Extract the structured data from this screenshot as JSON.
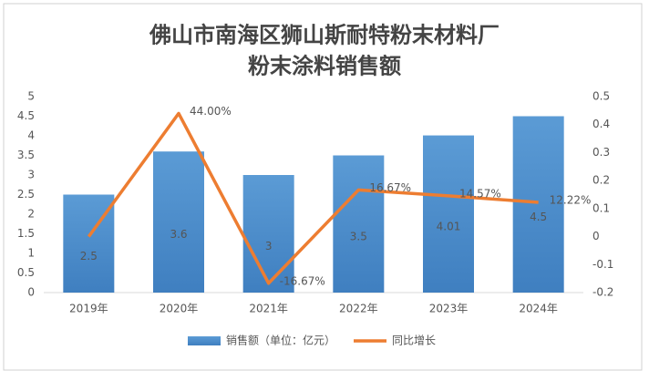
{
  "chart_data": {
    "type": "bar_line",
    "title": "佛山市南海区狮山斯耐特粉末材料厂",
    "subtitle": "粉末涂料销售额",
    "categories": [
      "2019年",
      "2020年",
      "2021年",
      "2022年",
      "2023年",
      "2024年"
    ],
    "series": [
      {
        "name": "销售额（单位：亿元）",
        "type": "bar",
        "color": "#5b9bd5",
        "values": [
          2.5,
          3.6,
          3,
          3.5,
          4.01,
          4.5
        ]
      },
      {
        "name": "同比增长",
        "type": "line",
        "axis": "y2",
        "color": "#ed7d31",
        "values": [
          0,
          0.44,
          -0.1667,
          0.1667,
          0.1457,
          0.1222
        ],
        "value_labels": [
          null,
          "44.00%",
          "-16.67%",
          "16.67%",
          "14.57%",
          "12.22%"
        ]
      }
    ],
    "ylim": [
      0,
      5
    ],
    "yticks": [
      0,
      0.5,
      1,
      1.5,
      2,
      2.5,
      3,
      3.5,
      4,
      4.5,
      5
    ],
    "y2lim": [
      -0.2,
      0.5
    ],
    "y2ticks": [
      -0.2,
      -0.1,
      0,
      0.1,
      0.2,
      0.3,
      0.4,
      0.5
    ],
    "grid": false,
    "legend": "bottom"
  }
}
